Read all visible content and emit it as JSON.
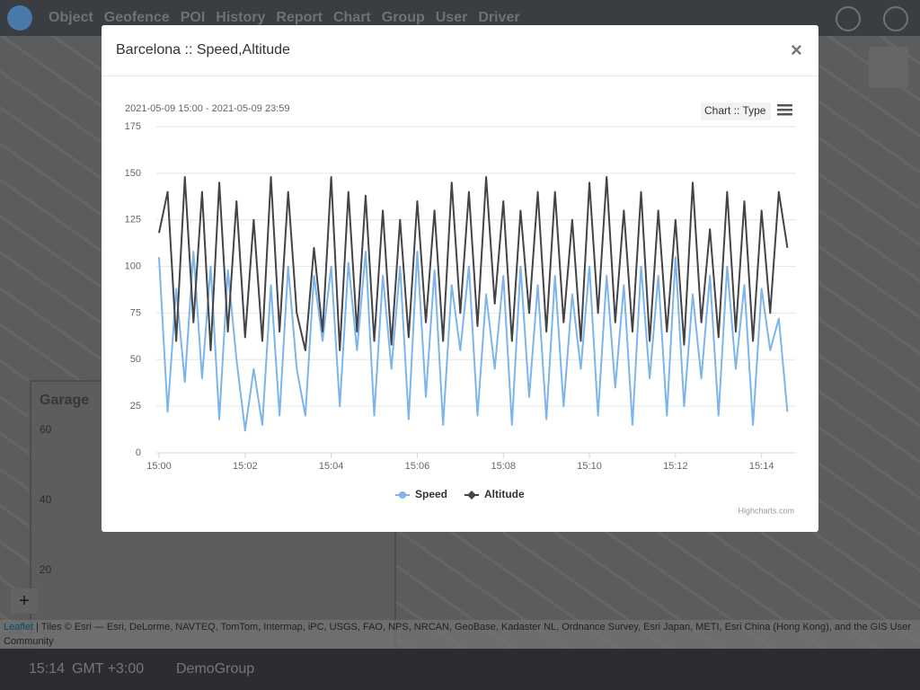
{
  "nav": {
    "items": [
      "Object",
      "Geofence",
      "POI",
      "History",
      "Report",
      "Chart",
      "Group",
      "User",
      "Driver"
    ]
  },
  "garage": {
    "title": "Garage",
    "yticks": [
      "60",
      "40",
      "20"
    ]
  },
  "map": {
    "zoom_in": "+",
    "attribution_link": "Leaflet",
    "attribution": "| Tiles © Esri — Esri, DeLorme, NAVTEQ, TomTom, Intermap, iPC, USGS, FAO, NPS, NRCAN, GeoBase, Kadaster NL, Ordnance Survey, Esri Japan, METI, Esri China (Hong Kong), and the GIS User Community"
  },
  "status": {
    "time": "15:14",
    "timezone": "GMT +3:00",
    "group": "DemoGroup"
  },
  "modal": {
    "title": "Barcelona :: Speed,Altitude",
    "close": "×"
  },
  "chart_data": {
    "type": "line",
    "subtitle": "2021-05-09 15:00 - 2021-05-09 23:59",
    "menu_button": "Chart :: Type",
    "credits": "Highcharts.com",
    "x": [
      0,
      0.2,
      0.4,
      0.6,
      0.8,
      1,
      1.2,
      1.4,
      1.6,
      1.8,
      2,
      2.2,
      2.4,
      2.6,
      2.8,
      3,
      3.2,
      3.4,
      3.6,
      3.8,
      4,
      4.2,
      4.4,
      4.6,
      4.8,
      5,
      5.2,
      5.4,
      5.6,
      5.8,
      6,
      6.2,
      6.4,
      6.6,
      6.8,
      7,
      7.2,
      7.4,
      7.6,
      7.8,
      8,
      8.2,
      8.4,
      8.6,
      8.8,
      9,
      9.2,
      9.4,
      9.6,
      9.8,
      10,
      10.2,
      10.4,
      10.6,
      10.8,
      11,
      11.2,
      11.4,
      11.6,
      11.8,
      12,
      12.2,
      12.4,
      12.6,
      12.8,
      13,
      13.2,
      13.4,
      13.6,
      13.8,
      14,
      14.2,
      14.4,
      14.6
    ],
    "series": [
      {
        "name": "Speed",
        "color": "#7cb5ec",
        "values": [
          105,
          22,
          88,
          38,
          108,
          40,
          100,
          18,
          98,
          50,
          12,
          45,
          15,
          90,
          20,
          100,
          45,
          20,
          95,
          60,
          100,
          25,
          102,
          55,
          108,
          20,
          95,
          45,
          100,
          18,
          108,
          30,
          98,
          15,
          90,
          55,
          100,
          20,
          85,
          45,
          95,
          15,
          100,
          30,
          90,
          18,
          95,
          25,
          85,
          45,
          100,
          20,
          95,
          35,
          90,
          15,
          100,
          40,
          95,
          20,
          105,
          25,
          85,
          40,
          95,
          20,
          100,
          45,
          90,
          15,
          88,
          55,
          72,
          22
        ]
      },
      {
        "name": "Altitude",
        "color": "#434348",
        "values": [
          118,
          140,
          60,
          148,
          70,
          140,
          55,
          145,
          65,
          135,
          62,
          125,
          60,
          148,
          65,
          140,
          75,
          55,
          110,
          65,
          148,
          55,
          140,
          65,
          138,
          60,
          130,
          58,
          125,
          62,
          135,
          70,
          130,
          60,
          145,
          75,
          140,
          68,
          148,
          80,
          135,
          60,
          130,
          75,
          140,
          65,
          140,
          70,
          125,
          60,
          145,
          75,
          148,
          70,
          130,
          65,
          140,
          60,
          130,
          65,
          125,
          58,
          145,
          70,
          120,
          62,
          140,
          65,
          135,
          60,
          130,
          75,
          140,
          110
        ]
      }
    ],
    "xlim": [
      0,
      14.8
    ],
    "xticks": [
      {
        "value": 0,
        "label": "15:00"
      },
      {
        "value": 2,
        "label": "15:02"
      },
      {
        "value": 4,
        "label": "15:04"
      },
      {
        "value": 6,
        "label": "15:06"
      },
      {
        "value": 8,
        "label": "15:08"
      },
      {
        "value": 10,
        "label": "15:10"
      },
      {
        "value": 12,
        "label": "15:12"
      },
      {
        "value": 14,
        "label": "15:14"
      }
    ],
    "ylim": [
      0,
      175
    ],
    "yticks": [
      0,
      25,
      50,
      75,
      100,
      125,
      150,
      175
    ],
    "grid": true
  }
}
